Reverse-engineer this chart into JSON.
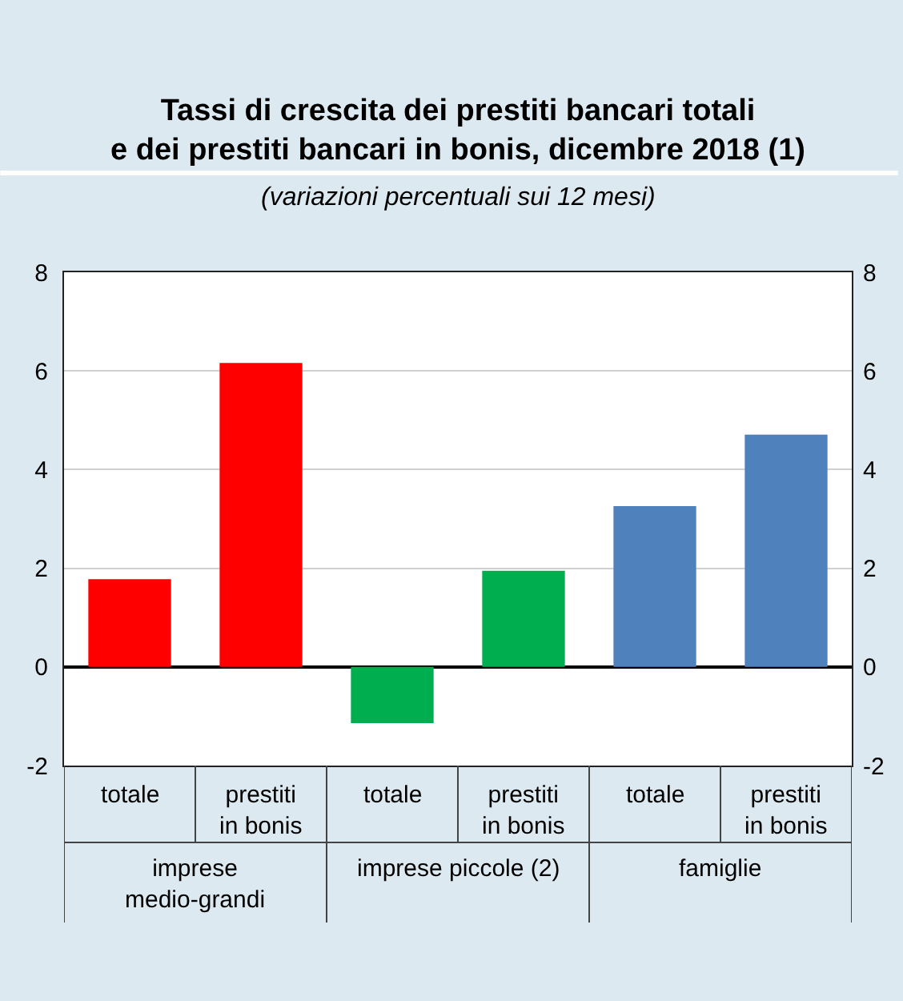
{
  "chart_data": {
    "type": "bar",
    "title": "Tassi di crescita dei prestiti bancari totali\ne dei prestiti bancari in bonis, dicembre 2018 (1)",
    "subtitle": "(variazioni percentuali sui 12 mesi)",
    "categories": [
      "totale",
      "prestiti in bonis",
      "totale",
      "prestiti in bonis",
      "totale",
      "prestiti in bonis"
    ],
    "values": [
      1.78,
      6.16,
      -1.14,
      1.95,
      3.26,
      4.71
    ],
    "colors": [
      "#ff0000",
      "#ff0000",
      "#00ae4f",
      "#00ae4f",
      "#4f81bd",
      "#4f81bd"
    ],
    "ylim": [
      -2,
      8
    ],
    "yticks": [
      -2,
      0,
      2,
      4,
      6,
      8
    ],
    "y2lim": [
      -2,
      8
    ],
    "y2ticks": [
      -2,
      0,
      2,
      4,
      6,
      8
    ],
    "grid": "y",
    "annotations": [
      "imprese\nmedio-grandi",
      "imprese piccole (2)",
      "famiglie"
    ]
  }
}
